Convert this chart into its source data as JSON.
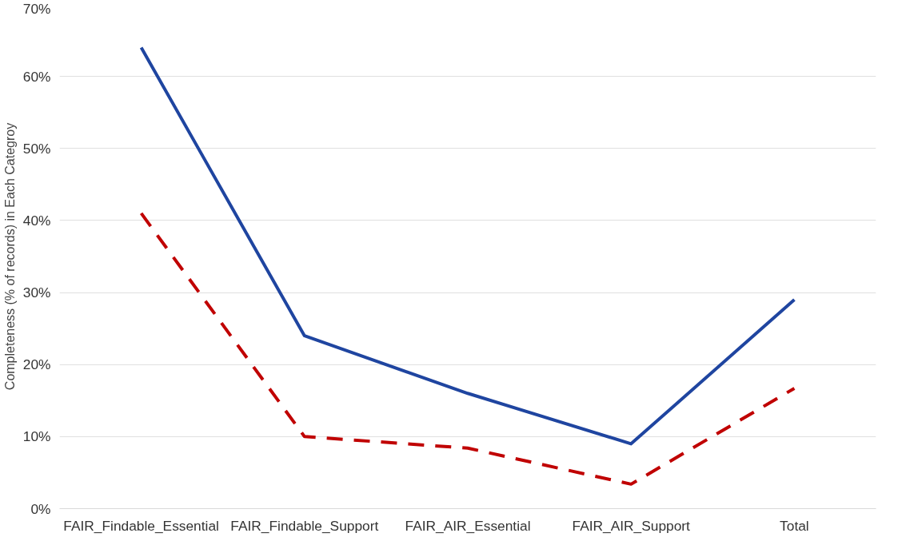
{
  "chart_data": {
    "type": "line",
    "ylabel": "Completeness (% of records) in Each Categroy",
    "categories": [
      "FAIR_Findable_Essential",
      "FAIR_Findable_Support",
      "FAIR_AIR_Essential",
      "FAIR_AIR_Support",
      "Total"
    ],
    "series": [
      {
        "color": "#1f45a0",
        "line_style": "solid",
        "values": [
          64,
          24,
          16,
          9,
          29
        ]
      },
      {
        "color": "#c00000",
        "line_style": "dashed",
        "values": [
          41,
          10,
          8.4,
          3.4,
          16.7
        ]
      }
    ],
    "ylim": [
      0,
      70
    ],
    "yticks": [
      {
        "value": 0,
        "label": "0%"
      },
      {
        "value": 10,
        "label": "10%"
      },
      {
        "value": 20,
        "label": "20%"
      },
      {
        "value": 30,
        "label": "30%"
      },
      {
        "value": 40,
        "label": "40%"
      },
      {
        "value": 50,
        "label": "50%"
      },
      {
        "value": 60,
        "label": "60%"
      },
      {
        "value": 70,
        "label": "70%"
      }
    ],
    "grid": "y",
    "marker": "none"
  }
}
